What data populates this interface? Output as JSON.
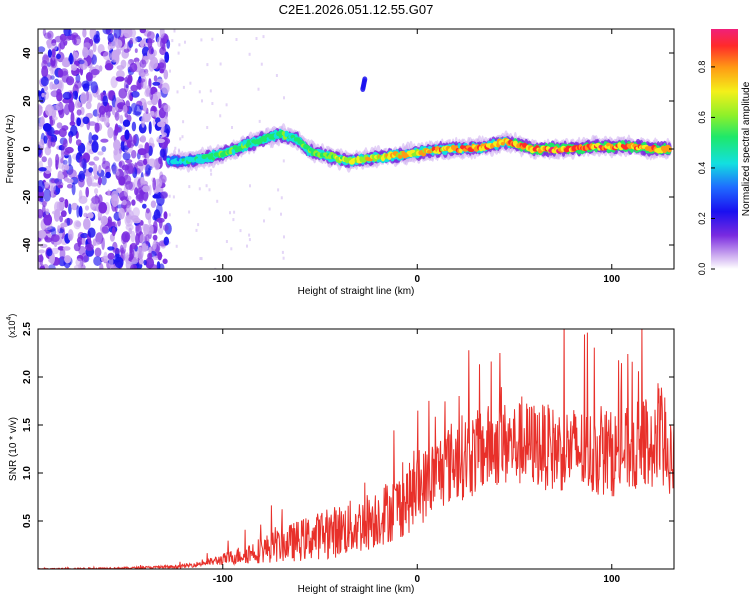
{
  "chart_data": [
    {
      "type": "heatmap",
      "title": "C2E1.2026.051.12.55.G07",
      "xlabel": "Height of straight line (km)",
      "ylabel": "Frequency (Hz)",
      "xlim": [
        -195,
        132
      ],
      "ylim": [
        -50,
        50
      ],
      "xticks": [
        -100,
        0,
        100
      ],
      "yticks": [
        -40,
        -20,
        0,
        20,
        40
      ],
      "colorbar": {
        "label": "Normalized spectral amplitude",
        "range": [
          0,
          0.95
        ],
        "ticks": [
          0.0,
          0.2,
          0.4,
          0.6,
          0.8
        ]
      },
      "noise_region_x": [
        -195,
        -128
      ],
      "ridge": {
        "x": [
          -128,
          -120,
          -110,
          -100,
          -90,
          -80,
          -70,
          -62,
          -55,
          -45,
          -35,
          -25,
          -15,
          -5,
          5,
          15,
          25,
          35,
          45,
          50,
          60,
          70,
          80,
          90,
          100,
          110,
          120,
          130
        ],
        "freq": [
          -5,
          -5,
          -4,
          -2,
          1,
          4,
          6,
          4,
          -1,
          -3,
          -5,
          -4,
          -3,
          -2,
          -1,
          0,
          0,
          1,
          3,
          2,
          0,
          0,
          0,
          1,
          1,
          1,
          0,
          0
        ],
        "amplitude": [
          0.4,
          0.45,
          0.5,
          0.55,
          0.55,
          0.55,
          0.55,
          0.55,
          0.6,
          0.6,
          0.65,
          0.75,
          0.8,
          0.8,
          0.8,
          0.85,
          0.85,
          0.85,
          0.85,
          0.9,
          0.9,
          0.9,
          0.9,
          0.9,
          0.9,
          0.9,
          0.9,
          0.9
        ]
      },
      "side_feature": {
        "x": [
          -28,
          -27
        ],
        "freq": [
          25,
          29
        ]
      }
    },
    {
      "type": "line",
      "xlabel": "Height of straight line (km)",
      "ylabel": "SNR (10 * v/v)",
      "y_multiplier_label": "(x10",
      "y_multiplier_exponent": "4",
      "y_multiplier_close": ")",
      "xlim": [
        -195,
        132
      ],
      "ylim": [
        0,
        2.5
      ],
      "xticks": [
        -100,
        0,
        100
      ],
      "yticks": [
        0.5,
        1.0,
        1.5,
        2.0,
        2.5
      ],
      "color": "#e8302a",
      "series": [
        {
          "name": "SNR",
          "x": [
            -195,
            -150,
            -130,
            -120,
            -110,
            -100,
            -90,
            -80,
            -70,
            -60,
            -50,
            -40,
            -30,
            -20,
            -10,
            0,
            10,
            20,
            30,
            40,
            50,
            60,
            70,
            80,
            90,
            100,
            110,
            120,
            125,
            130
          ],
          "values": [
            0.0,
            0.01,
            0.02,
            0.03,
            0.06,
            0.1,
            0.15,
            0.2,
            0.25,
            0.3,
            0.35,
            0.4,
            0.45,
            0.55,
            0.65,
            0.8,
            1.0,
            1.15,
            1.2,
            1.3,
            1.3,
            1.3,
            1.25,
            1.25,
            1.2,
            1.2,
            1.25,
            1.3,
            1.3,
            1.3
          ],
          "noise_amplitude": [
            0.005,
            0.01,
            0.015,
            0.02,
            0.03,
            0.06,
            0.1,
            0.14,
            0.18,
            0.22,
            0.25,
            0.28,
            0.3,
            0.32,
            0.35,
            0.38,
            0.4,
            0.45,
            0.45,
            0.45,
            0.45,
            0.45,
            0.45,
            0.45,
            0.45,
            0.45,
            0.45,
            0.55,
            0.6,
            0.6
          ]
        }
      ]
    }
  ]
}
